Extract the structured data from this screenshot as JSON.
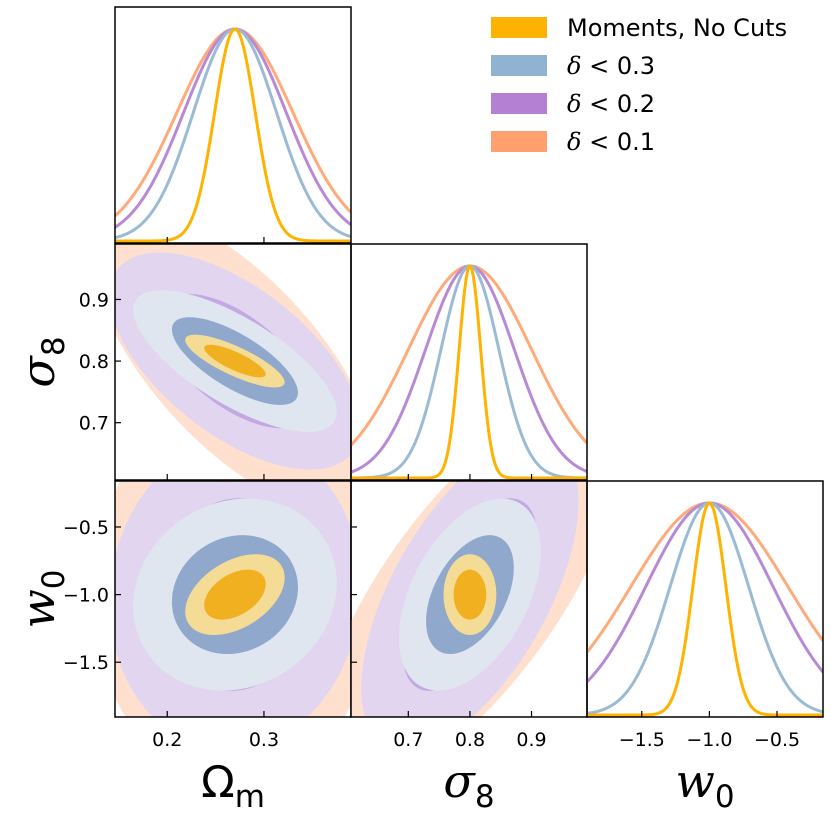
{
  "chart_data": {
    "type": "corner",
    "parameters": [
      {
        "key": "om",
        "label_main": "Ω",
        "label_sub": "m",
        "label_italic": false,
        "range": [
          0.146,
          0.39
        ],
        "ticks": [
          0.2,
          0.3
        ],
        "tick_labels": [
          "0.2",
          "0.3"
        ]
      },
      {
        "key": "s8",
        "label_main": "σ",
        "label_sub": "8",
        "label_italic": true,
        "range": [
          0.607,
          0.99
        ],
        "ticks": [
          0.7,
          0.8,
          0.9
        ],
        "tick_labels": [
          "0.7",
          "0.8",
          "0.9"
        ]
      },
      {
        "key": "w0",
        "label_main": "w",
        "label_sub": "0",
        "label_italic": true,
        "range": [
          -1.905,
          -0.16
        ],
        "ticks": [
          -1.5,
          -1.0,
          -0.5
        ],
        "tick_labels": [
          "−1.5",
          "−1.0",
          "−0.5"
        ]
      }
    ],
    "legend": {
      "position": "top-right",
      "entries": [
        {
          "text": "Moments, No Cuts",
          "is_math": false
        },
        {
          "text_sym": "δ",
          "text_rest": " < 0.3",
          "is_math": true
        },
        {
          "text_sym": "δ",
          "text_rest": " < 0.2",
          "is_math": true
        },
        {
          "text_sym": "δ",
          "text_rest": " < 0.1",
          "is_math": true
        }
      ]
    },
    "series": [
      {
        "name": "Moments, No Cuts",
        "color": "#ffb300",
        "line_color": "#ffb300",
        "fill_inner": "#f0b020",
        "fill_outer": "#f5dc96",
        "mean": {
          "om": 0.27,
          "s8": 0.8,
          "w0": -1.0
        },
        "sigma": {
          "om": 0.021,
          "s8": 0.0175,
          "w0": 0.122
        },
        "corr": {
          "om_s8": -0.8,
          "om_w0": 0.42,
          "s8_w0": 0.0
        }
      },
      {
        "name": "δ < 0.3",
        "color": "#8fb3d0",
        "line_color": "#9bbbd4",
        "fill_inner": "#8fa8cc",
        "fill_outer": "#dfe6f0",
        "mean": {
          "om": 0.27,
          "s8": 0.8,
          "w0": -1.0
        },
        "sigma": {
          "om": 0.043,
          "s8": 0.047,
          "w0": 0.29
        },
        "corr": {
          "om_s8": -0.72,
          "om_w0": 0.12,
          "s8_w0": 0.45
        }
      },
      {
        "name": "δ < 0.2",
        "color": "#b380d4",
        "line_color": "#b88ad6",
        "fill_inner": "#c4a8e2",
        "fill_outer": "#e2d5f0",
        "mean": {
          "om": 0.27,
          "s8": 0.8,
          "w0": -1.0
        },
        "sigma": {
          "om": 0.053,
          "s8": 0.072,
          "w0": 0.47
        },
        "corr": {
          "om_s8": -0.6,
          "om_w0": 0.05,
          "s8_w0": 0.6
        }
      },
      {
        "name": "δ < 0.1",
        "color": "#ffa06e",
        "line_color": "#ffaa7a",
        "fill_inner": "#ffc8a8",
        "fill_outer": "#ffe0cf",
        "mean": {
          "om": 0.27,
          "s8": 0.8,
          "w0": -1.0
        },
        "sigma": {
          "om": 0.06,
          "s8": 0.1,
          "w0": 0.58
        },
        "corr": {
          "om_s8": -0.68,
          "om_w0": 0.0,
          "s8_w0": 0.72
        }
      }
    ]
  }
}
